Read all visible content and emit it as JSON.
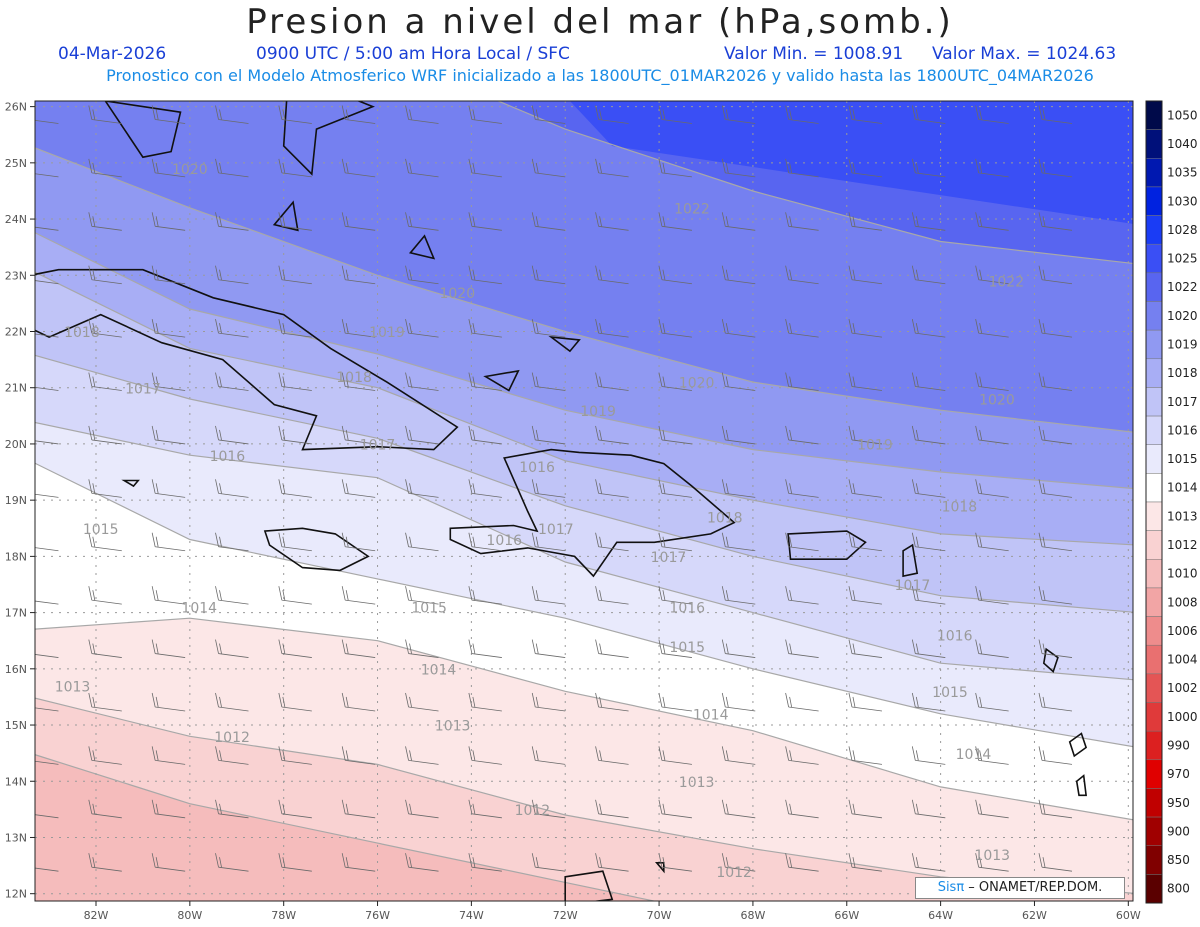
{
  "title": "Presion a nivel del mar (hPa,somb.)",
  "date": "04-Mar-2026",
  "time": "0900 UTC / 5:00 am Hora Local / SFC",
  "valor_min": "Valor Min. = 1008.91",
  "valor_max": "Valor Max. = 1024.63",
  "model_info": "Pronostico con el Modelo Atmosferico WRF inicializado a las 1800UTC_01MAR2026 y valido hasta las  1800UTC_04MAR2026",
  "brand_sis": "Sisπ",
  "brand_rest": " – ONAMET/REP.DOM.",
  "lat_labels": [
    "26N",
    "25N",
    "24N",
    "23N",
    "22N",
    "21N",
    "20N",
    "19N",
    "18N",
    "17N",
    "16N",
    "15N",
    "14N",
    "13N",
    "12N"
  ],
  "lon_labels": [
    "82W",
    "80W",
    "78W",
    "76W",
    "74W",
    "72W",
    "70W",
    "68W",
    "66W",
    "64W",
    "62W",
    "60W"
  ],
  "colorbar": [
    {
      "label": "1050",
      "color": "#000a4a"
    },
    {
      "label": "1040",
      "color": "#00107a"
    },
    {
      "label": "1035",
      "color": "#0018b0"
    },
    {
      "label": "1030",
      "color": "#0022e0"
    },
    {
      "label": "1028",
      "color": "#1a3cf5"
    },
    {
      "label": "1025",
      "color": "#3a4ff5"
    },
    {
      "label": "1022",
      "color": "#5865f0"
    },
    {
      "label": "1020",
      "color": "#7580f0"
    },
    {
      "label": "1019",
      "color": "#9099f2"
    },
    {
      "label": "1018",
      "color": "#a8aef5"
    },
    {
      "label": "1017",
      "color": "#c0c4f7"
    },
    {
      "label": "1016",
      "color": "#d6d8fa"
    },
    {
      "label": "1015",
      "color": "#e9eafc"
    },
    {
      "label": "1014",
      "color": "#ffffff"
    },
    {
      "label": "1013",
      "color": "#fce7e7"
    },
    {
      "label": "1012",
      "color": "#f9d2d2"
    },
    {
      "label": "1010",
      "color": "#f5bcbc"
    },
    {
      "label": "1008",
      "color": "#f2a5a5"
    },
    {
      "label": "1006",
      "color": "#ee8c8c"
    },
    {
      "label": "1004",
      "color": "#e97070"
    },
    {
      "label": "1002",
      "color": "#e45555"
    },
    {
      "label": "1000",
      "color": "#e03a3a"
    },
    {
      "label": "990",
      "color": "#dc2020"
    },
    {
      "label": "970",
      "color": "#e00000"
    },
    {
      "label": "950",
      "color": "#c00000"
    },
    {
      "label": "900",
      "color": "#a00000"
    },
    {
      "label": "850",
      "color": "#800000"
    },
    {
      "label": "800",
      "color": "#5a0000"
    }
  ],
  "contour_labels": [
    {
      "text": "1020",
      "lon": -80.0,
      "lat": 24.8
    },
    {
      "text": "1022",
      "lon": -69.3,
      "lat": 24.1
    },
    {
      "text": "1022",
      "lon": -62.6,
      "lat": 22.8
    },
    {
      "text": "1020",
      "lon": -74.3,
      "lat": 22.6
    },
    {
      "text": "1020",
      "lon": -69.2,
      "lat": 21.0
    },
    {
      "text": "1020",
      "lon": -62.8,
      "lat": 20.7
    },
    {
      "text": "1019",
      "lon": -75.8,
      "lat": 21.9
    },
    {
      "text": "1019",
      "lon": -71.3,
      "lat": 20.5
    },
    {
      "text": "1019",
      "lon": -65.4,
      "lat": 19.9
    },
    {
      "text": "1018",
      "lon": -82.3,
      "lat": 21.9
    },
    {
      "text": "1018",
      "lon": -76.5,
      "lat": 21.1
    },
    {
      "text": "1018",
      "lon": -63.6,
      "lat": 18.8
    },
    {
      "text": "1018",
      "lon": -68.6,
      "lat": 18.6
    },
    {
      "text": "1017",
      "lon": -81.0,
      "lat": 20.9
    },
    {
      "text": "1017",
      "lon": -76.0,
      "lat": 19.9
    },
    {
      "text": "1017",
      "lon": -72.2,
      "lat": 18.4
    },
    {
      "text": "1017",
      "lon": -69.8,
      "lat": 17.9
    },
    {
      "text": "1017",
      "lon": -64.6,
      "lat": 17.4
    },
    {
      "text": "1016",
      "lon": -79.2,
      "lat": 19.7
    },
    {
      "text": "1016",
      "lon": -72.6,
      "lat": 19.5
    },
    {
      "text": "1016",
      "lon": -73.3,
      "lat": 18.2
    },
    {
      "text": "1016",
      "lon": -69.4,
      "lat": 17.0
    },
    {
      "text": "1016",
      "lon": -63.7,
      "lat": 16.5
    },
    {
      "text": "1015",
      "lon": -81.9,
      "lat": 18.4
    },
    {
      "text": "1015",
      "lon": -74.9,
      "lat": 17.0
    },
    {
      "text": "1015",
      "lon": -69.4,
      "lat": 16.3
    },
    {
      "text": "1015",
      "lon": -63.8,
      "lat": 15.5
    },
    {
      "text": "1014",
      "lon": -79.8,
      "lat": 17.0
    },
    {
      "text": "1014",
      "lon": -74.7,
      "lat": 15.9
    },
    {
      "text": "1014",
      "lon": -68.9,
      "lat": 15.1
    },
    {
      "text": "1014",
      "lon": -63.3,
      "lat": 14.4
    },
    {
      "text": "1013",
      "lon": -82.5,
      "lat": 15.6
    },
    {
      "text": "1013",
      "lon": -74.4,
      "lat": 14.9
    },
    {
      "text": "1013",
      "lon": -69.2,
      "lat": 13.9
    },
    {
      "text": "1012",
      "lon": -79.1,
      "lat": 14.7
    },
    {
      "text": "1012",
      "lon": -72.7,
      "lat": 13.4
    },
    {
      "text": "1013",
      "lon": -62.9,
      "lat": 12.6
    },
    {
      "text": "1012",
      "lon": -68.4,
      "lat": 12.3
    }
  ]
}
